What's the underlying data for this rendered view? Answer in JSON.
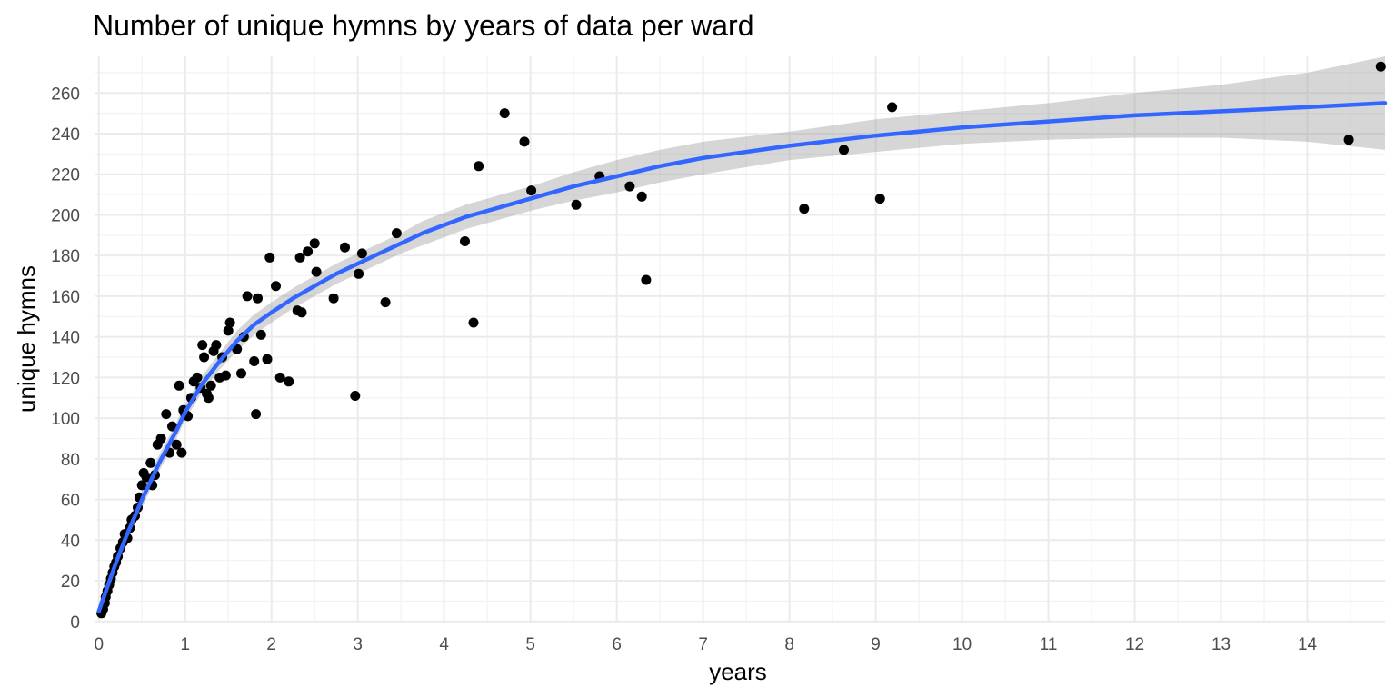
{
  "chart_data": {
    "type": "scatter",
    "title": "Number of unique hymns by years of data per ward",
    "xlabel": "years",
    "ylabel": "unique hymns",
    "xlim": [
      -0.05,
      14.9
    ],
    "ylim": [
      -1,
      278
    ],
    "x_ticks": [
      0,
      1,
      2,
      3,
      4,
      5,
      6,
      7,
      8,
      9,
      10,
      11,
      12,
      13,
      14
    ],
    "y_ticks": [
      0,
      20,
      40,
      60,
      80,
      100,
      120,
      140,
      160,
      180,
      200,
      220,
      240,
      260
    ],
    "grid": true,
    "legend": "none",
    "colors": {
      "points": "#000000",
      "smooth_line": "#3366ff",
      "confidence_band": "#999999",
      "grid": "#ebebeb"
    },
    "points": [
      [
        0.03,
        4
      ],
      [
        0.05,
        6
      ],
      [
        0.07,
        9
      ],
      [
        0.08,
        12
      ],
      [
        0.1,
        15
      ],
      [
        0.12,
        18
      ],
      [
        0.14,
        21
      ],
      [
        0.16,
        24
      ],
      [
        0.18,
        27
      ],
      [
        0.2,
        29
      ],
      [
        0.22,
        32
      ],
      [
        0.25,
        36
      ],
      [
        0.28,
        39
      ],
      [
        0.3,
        43
      ],
      [
        0.33,
        41
      ],
      [
        0.36,
        46
      ],
      [
        0.38,
        50
      ],
      [
        0.42,
        52
      ],
      [
        0.45,
        56
      ],
      [
        0.47,
        61
      ],
      [
        0.5,
        67
      ],
      [
        0.52,
        73
      ],
      [
        0.55,
        71
      ],
      [
        0.6,
        78
      ],
      [
        0.62,
        67
      ],
      [
        0.65,
        72
      ],
      [
        0.68,
        87
      ],
      [
        0.72,
        90
      ],
      [
        0.78,
        102
      ],
      [
        0.82,
        83
      ],
      [
        0.85,
        96
      ],
      [
        0.9,
        87
      ],
      [
        0.93,
        116
      ],
      [
        0.96,
        83
      ],
      [
        0.98,
        104
      ],
      [
        1.0,
        102
      ],
      [
        1.03,
        101
      ],
      [
        1.07,
        110
      ],
      [
        1.1,
        118
      ],
      [
        1.14,
        120
      ],
      [
        1.18,
        115
      ],
      [
        1.2,
        136
      ],
      [
        1.22,
        130
      ],
      [
        1.25,
        112
      ],
      [
        1.27,
        110
      ],
      [
        1.3,
        116
      ],
      [
        1.33,
        133
      ],
      [
        1.36,
        136
      ],
      [
        1.4,
        120
      ],
      [
        1.43,
        130
      ],
      [
        1.47,
        121
      ],
      [
        1.5,
        143
      ],
      [
        1.52,
        147
      ],
      [
        1.6,
        134
      ],
      [
        1.65,
        122
      ],
      [
        1.68,
        140
      ],
      [
        1.72,
        160
      ],
      [
        1.8,
        128
      ],
      [
        1.82,
        102
      ],
      [
        1.84,
        159
      ],
      [
        1.88,
        141
      ],
      [
        1.95,
        129
      ],
      [
        1.98,
        179
      ],
      [
        2.05,
        165
      ],
      [
        2.1,
        120
      ],
      [
        2.2,
        118
      ],
      [
        2.3,
        153
      ],
      [
        2.35,
        152
      ],
      [
        2.33,
        179
      ],
      [
        2.42,
        182
      ],
      [
        2.5,
        186
      ],
      [
        2.52,
        172
      ],
      [
        2.72,
        159
      ],
      [
        2.85,
        184
      ],
      [
        2.97,
        111
      ],
      [
        3.01,
        171
      ],
      [
        3.05,
        181
      ],
      [
        3.32,
        157
      ],
      [
        3.45,
        191
      ],
      [
        4.24,
        187
      ],
      [
        4.34,
        147
      ],
      [
        4.4,
        224
      ],
      [
        4.7,
        250
      ],
      [
        4.93,
        236
      ],
      [
        5.01,
        212
      ],
      [
        5.53,
        205
      ],
      [
        5.8,
        219
      ],
      [
        6.15,
        214
      ],
      [
        6.29,
        209
      ],
      [
        6.34,
        168
      ],
      [
        8.17,
        203
      ],
      [
        8.63,
        232
      ],
      [
        9.05,
        208
      ],
      [
        9.19,
        253
      ],
      [
        14.48,
        237
      ],
      [
        14.85,
        273
      ]
    ],
    "smooth": {
      "x": [
        0.0,
        0.1,
        0.2,
        0.3,
        0.4,
        0.5,
        0.6,
        0.7,
        0.8,
        0.9,
        1.0,
        1.2,
        1.4,
        1.6,
        1.8,
        2.0,
        2.25,
        2.5,
        2.75,
        3.0,
        3.25,
        3.5,
        3.75,
        4.0,
        4.25,
        4.5,
        4.75,
        5.0,
        5.5,
        6.0,
        6.5,
        7.0,
        8.0,
        9.0,
        10.0,
        11.0,
        12.0,
        13.0,
        14.0,
        14.9
      ],
      "y": [
        5,
        17,
        29,
        40,
        50,
        60,
        69,
        78,
        86,
        94,
        103,
        117,
        128,
        138,
        146,
        152,
        159,
        165,
        171,
        176,
        181,
        186,
        191,
        195,
        199,
        202,
        205,
        208,
        214,
        219,
        224,
        228,
        234,
        239,
        243,
        246,
        249,
        251,
        253,
        255
      ],
      "lower": [
        1,
        13,
        25,
        36,
        46,
        56,
        65,
        74,
        82,
        90,
        99,
        113,
        124,
        133,
        141,
        147,
        154,
        160,
        166,
        171,
        176,
        181,
        185,
        189,
        193,
        196,
        199,
        202,
        207,
        211,
        216,
        220,
        227,
        231,
        235,
        237,
        238,
        238,
        236,
        232
      ],
      "upper": [
        9,
        21,
        33,
        44,
        54,
        64,
        73,
        82,
        90,
        98,
        107,
        121,
        132,
        143,
        151,
        157,
        164,
        170,
        176,
        181,
        186,
        191,
        197,
        201,
        205,
        208,
        211,
        214,
        221,
        227,
        232,
        236,
        241,
        247,
        251,
        255,
        260,
        264,
        270,
        278
      ]
    }
  }
}
